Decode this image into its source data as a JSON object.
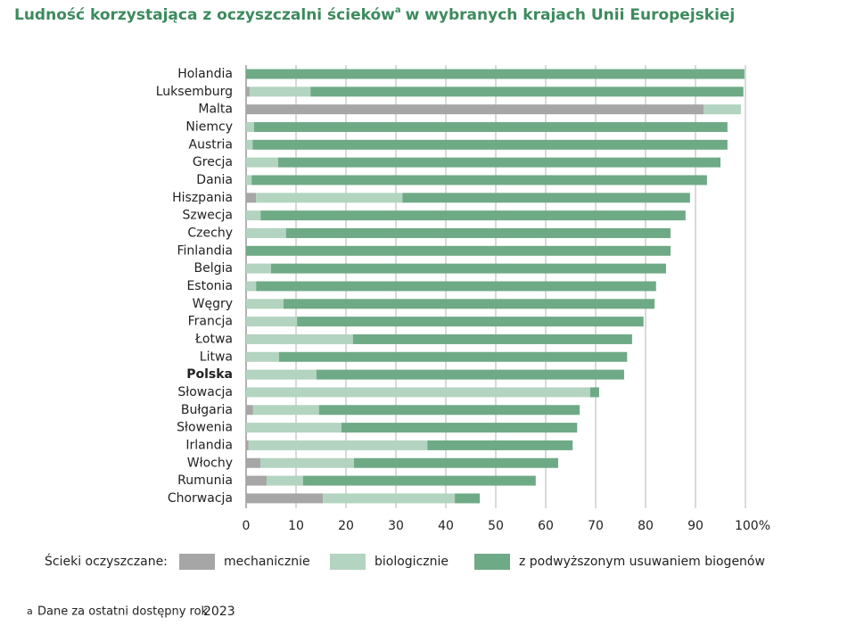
{
  "chart_data": {
    "type": "stacked-bar-horizontal",
    "title": "Ludność korzystająca z oczyszczalni ścieków",
    "title_note_marker": "a",
    "title_rest": "w wybranych krajach Unii Europejskiej",
    "categories": [
      "Holandia",
      "Luksemburg",
      "Malta",
      "Niemcy",
      "Austria",
      "Grecja",
      "Dania",
      "Hiszpania",
      "Szwecja",
      "Czechy",
      "Finlandia",
      "Belgia",
      "Estonia",
      "Węgry",
      "Francja",
      "Łotwa",
      "Litwa",
      "Polska",
      "Słowacja",
      "Bułgaria",
      "Słowenia",
      "Irlandia",
      "Włochy",
      "Rumunia",
      "Chorwacja"
    ],
    "highlight_category": "Polska",
    "legend_title": "Ścieki oczyszczane:",
    "series": [
      {
        "name": "mechanicznie",
        "color": "#a6a6a6",
        "values": [
          0,
          0.7,
          91.6,
          0,
          0,
          0,
          0,
          2.0,
          0,
          0,
          0,
          0,
          0,
          0,
          0,
          0,
          0,
          0,
          0,
          1.4,
          0,
          0.5,
          2.9,
          4.1,
          15.4
        ]
      },
      {
        "name": "biologicznie",
        "color": "#b3d4c0",
        "values": [
          0,
          12.2,
          7.5,
          1.6,
          1.3,
          6.4,
          1.1,
          29.3,
          2.9,
          8.0,
          0,
          5.0,
          2.0,
          7.5,
          10.2,
          21.4,
          6.6,
          14.1,
          68.9,
          13.2,
          19.1,
          35.8,
          18.7,
          7.3,
          26.4
        ]
      },
      {
        "name": "z podwyższonym usuwaniem biogenów",
        "color": "#6faa86",
        "values": [
          99.8,
          86.7,
          0,
          94.8,
          95.1,
          88.6,
          91.2,
          57.6,
          85.1,
          77.0,
          85.0,
          79.1,
          80.1,
          74.3,
          69.4,
          55.9,
          69.7,
          61.6,
          1.8,
          52.2,
          47.2,
          29.1,
          40.9,
          46.6,
          5.0
        ]
      }
    ],
    "xlim": [
      0,
      100
    ],
    "xticks": [
      0,
      10,
      20,
      30,
      40,
      50,
      60,
      70,
      80,
      90,
      {
        "value": 100,
        "label": "100%"
      }
    ],
    "grid": true,
    "footnote_marker": "a",
    "footnote": "Dane za ostatni dostępny rok",
    "year": "2023"
  }
}
